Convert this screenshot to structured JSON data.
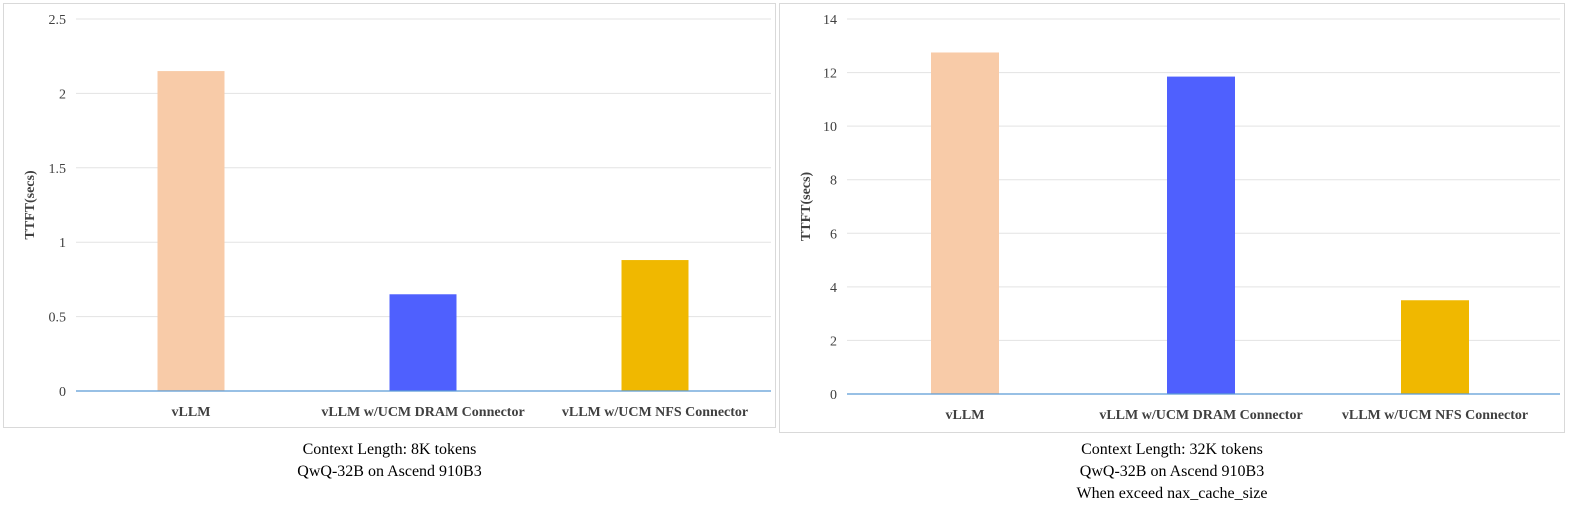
{
  "colors": {
    "vllm": "#f8cba8",
    "dram": "#4f60fe",
    "nfs": "#f0b800",
    "grid": "#e3e3e3",
    "axis": "#5b9bd5",
    "text": "#404040"
  },
  "chart_data": [
    {
      "type": "bar",
      "title": "",
      "xlabel": "",
      "ylabel": "TTFT(secs)",
      "categories": [
        "vLLM",
        "vLLM w/UCM DRAM Connector",
        "vLLM w/UCM NFS Connector"
      ],
      "values": [
        2.15,
        0.65,
        0.88
      ],
      "ylim": [
        0,
        2.5
      ],
      "yticks": [
        0,
        0.5,
        1,
        1.5,
        2,
        2.5
      ],
      "ytick_labels": [
        "0",
        "0.5",
        "1",
        "1.5",
        "2",
        "2.5"
      ],
      "grid": true,
      "legend": "none",
      "caption": [
        "Context Length: 8K tokens",
        "QwQ-32B on Ascend 910B3"
      ]
    },
    {
      "type": "bar",
      "title": "",
      "xlabel": "",
      "ylabel": "TTFT(secs)",
      "categories": [
        "vLLM",
        "vLLM w/UCM DRAM Connector",
        "vLLM w/UCM NFS Connector"
      ],
      "values": [
        12.75,
        11.85,
        3.5
      ],
      "ylim": [
        0,
        14
      ],
      "yticks": [
        0,
        2,
        4,
        6,
        8,
        10,
        12,
        14
      ],
      "ytick_labels": [
        "0",
        "2",
        "4",
        "6",
        "8",
        "10",
        "12",
        "14"
      ],
      "grid": true,
      "legend": "none",
      "caption": [
        "Context Length: 32K tokens",
        "QwQ-32B on Ascend 910B3",
        "When exceed nax_cache_size"
      ]
    }
  ]
}
